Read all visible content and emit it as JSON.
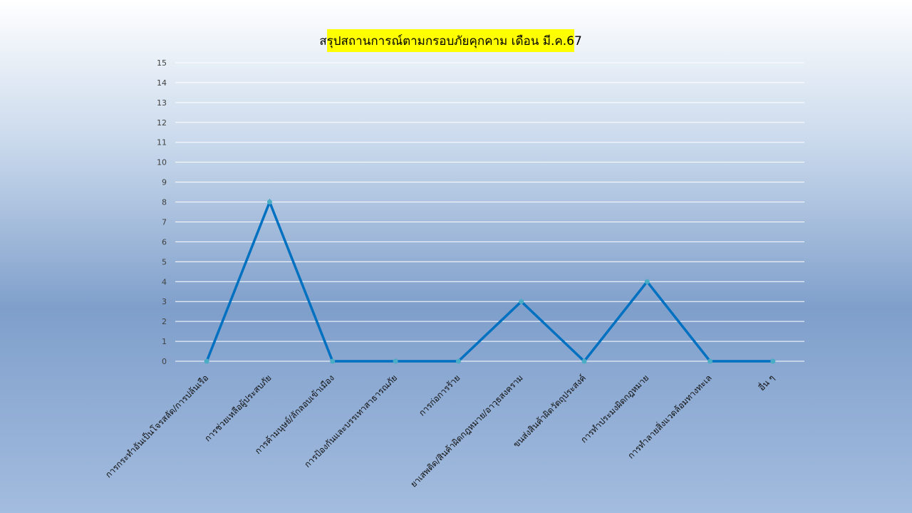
{
  "chart_data": {
    "type": "line",
    "title": "สรุปสถานการณ์ตามกรอบภัยคุกคาม เดือน มี.ค.67",
    "categories": [
      "การกระทำอันเป็นโจรสลัด/การปล้นเรือ",
      "การช่วยเหลือผู้ประสบภัย",
      "การค้ามนุษย์/ลักลอบเข้าเมือง",
      "การป้องกันและบรรเทาสาธารณภัย",
      "การก่อการร้าย",
      "ยาเสพติด/สินค้าผิดกฎหมาย/อาวุธสงคราม",
      "ขนส่งสินค้าผิดวัตถุประสงค์",
      "การทำประมงผิดกฎหมาย",
      "การทำลายสิ่งแวดล้อมทางทะเล",
      "อื่น ๆ"
    ],
    "values": [
      0,
      8,
      0,
      0,
      0,
      3,
      0,
      4,
      0,
      0
    ],
    "ylim": [
      0,
      15
    ],
    "yticks": [
      0,
      1,
      2,
      3,
      4,
      5,
      6,
      7,
      8,
      9,
      10,
      11,
      12,
      13,
      14,
      15
    ],
    "grid": true,
    "line_color": "#0070c0",
    "marker_color": "#4bacc6"
  }
}
